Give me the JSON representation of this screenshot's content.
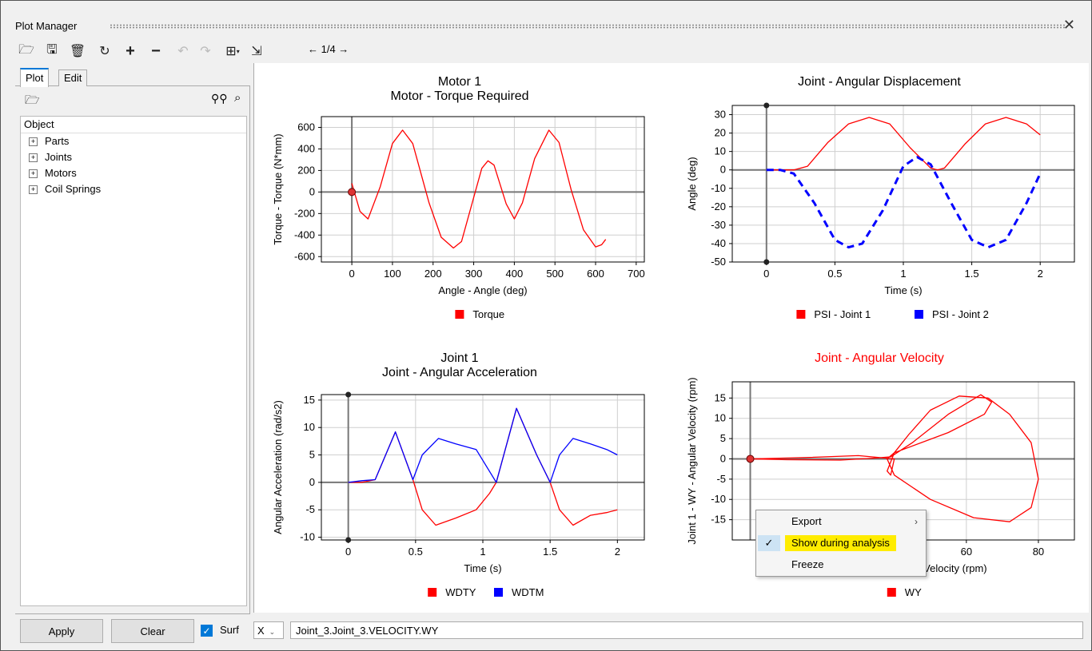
{
  "window": {
    "title": "Plot Manager",
    "close_icon": "close-icon"
  },
  "toolbar": {
    "page_indicator": "← 1/4 →",
    "icons": [
      "open-folder-icon",
      "save-icon",
      "delete-icon",
      "refresh-icon",
      "add-icon",
      "remove-icon",
      "undo-icon",
      "redo-icon",
      "layout-grid-icon",
      "export-chart-icon"
    ]
  },
  "left_panel": {
    "tabs": [
      {
        "label": "Plot",
        "active": true
      },
      {
        "label": "Edit",
        "active": false
      }
    ],
    "tree_header": "Object",
    "tree_items": [
      {
        "label": "Parts"
      },
      {
        "label": "Joints"
      },
      {
        "label": "Motors"
      },
      {
        "label": "Coil Springs"
      }
    ]
  },
  "bottom": {
    "apply_label": "Apply",
    "clear_label": "Clear",
    "surf_label": "Surf",
    "surf_checked": true,
    "axis_select": "X",
    "expression": "Joint_3.Joint_3.VELOCITY.WY"
  },
  "context_menu": {
    "items": [
      {
        "label": "Export",
        "has_submenu": true
      },
      {
        "label": "Show during analysis",
        "checked": true,
        "highlighted": true
      },
      {
        "label": "Freeze"
      }
    ]
  },
  "colors": {
    "red": "#ff0000",
    "blue": "#0000ff",
    "accent": "#0078d7",
    "highlight": "#ffec00"
  },
  "chart_data": [
    {
      "type": "line",
      "title": "Motor 1",
      "subtitle": "Motor - Torque Required",
      "xlabel": "Angle - Angle (deg)",
      "ylabel": "Torque - Torque (N*mm)",
      "xlim": [
        -75,
        720
      ],
      "ylim": [
        -650,
        700
      ],
      "xticks": [
        0,
        100,
        200,
        300,
        400,
        500,
        600,
        700
      ],
      "yticks": [
        -600,
        -400,
        -200,
        0,
        200,
        400,
        600
      ],
      "grid": true,
      "series": [
        {
          "name": "Torque",
          "color": "#ff0000",
          "style": "solid",
          "x": [
            0,
            20,
            40,
            70,
            100,
            125,
            150,
            190,
            220,
            250,
            270,
            300,
            320,
            335,
            350,
            380,
            400,
            420,
            450,
            485,
            510,
            540,
            570,
            600,
            615,
            625
          ],
          "y": [
            80,
            -180,
            -250,
            50,
            450,
            575,
            450,
            -100,
            -420,
            -520,
            -460,
            -50,
            220,
            290,
            250,
            -110,
            -250,
            -100,
            310,
            575,
            460,
            20,
            -350,
            -510,
            -490,
            -440
          ]
        }
      ],
      "legend": "bottom"
    },
    {
      "type": "line",
      "title": "Joint - Angular Displacement",
      "xlabel": "Time (s)",
      "ylabel": "Angle (deg)",
      "xlim": [
        -0.25,
        2.25
      ],
      "ylim": [
        -50,
        35
      ],
      "xticks": [
        0,
        0.5,
        1,
        1.5,
        2
      ],
      "yticks": [
        -50,
        -40,
        -30,
        -20,
        -10,
        0,
        10,
        20,
        30
      ],
      "grid": true,
      "series": [
        {
          "name": "PSI - Joint 1",
          "color": "#ff0000",
          "style": "solid",
          "x": [
            0,
            0.2,
            0.3,
            0.45,
            0.6,
            0.75,
            0.9,
            1.05,
            1.2,
            1.25,
            1.3,
            1.45,
            1.6,
            1.75,
            1.9,
            2.0
          ],
          "y": [
            0,
            0,
            2,
            15,
            25,
            28.5,
            25,
            12,
            1,
            0,
            1,
            14,
            25,
            28.5,
            25,
            19
          ]
        },
        {
          "name": "PSI - Joint 2",
          "color": "#0000ff",
          "style": "dashed",
          "x": [
            0,
            0.1,
            0.2,
            0.35,
            0.5,
            0.6,
            0.7,
            0.85,
            1.0,
            1.1,
            1.2,
            1.35,
            1.5,
            1.62,
            1.75,
            1.9,
            2.0
          ],
          "y": [
            0,
            0,
            -2,
            -18,
            -38,
            -42,
            -40,
            -22,
            2,
            7,
            3,
            -18,
            -38,
            -42,
            -38,
            -18,
            -2
          ]
        }
      ],
      "legend": "bottom"
    },
    {
      "type": "line",
      "title": "Joint 1",
      "subtitle": "Joint - Angular Acceleration",
      "xlabel": "Time (s)",
      "ylabel": "Angular Acceleration (rad/s2)",
      "xlim": [
        -0.2,
        2.2
      ],
      "ylim": [
        -10.5,
        16
      ],
      "xticks": [
        0,
        0.5,
        1,
        1.5,
        2
      ],
      "yticks": [
        -10,
        -5,
        0,
        5,
        10,
        15
      ],
      "grid": true,
      "series": [
        {
          "name": "WDTY",
          "color": "#ff0000",
          "style": "solid",
          "x": [
            0,
            0.1,
            0.2,
            0.35,
            0.48,
            0.55,
            0.65,
            0.8,
            0.95,
            1.05,
            1.1,
            1.25,
            1.4,
            1.5,
            1.57,
            1.67,
            1.8,
            1.92,
            2.0
          ],
          "y": [
            0,
            0,
            0.5,
            9.2,
            0.5,
            -5,
            -7.8,
            -6.5,
            -5,
            -2,
            0,
            13.5,
            5,
            0,
            -5,
            -7.8,
            -6,
            -5.5,
            -5
          ]
        },
        {
          "name": "WDTM",
          "color": "#0000ff",
          "style": "solid",
          "x": [
            0,
            0.1,
            0.2,
            0.35,
            0.48,
            0.55,
            0.67,
            0.8,
            0.95,
            1.05,
            1.1,
            1.25,
            1.4,
            1.5,
            1.57,
            1.67,
            1.8,
            1.92,
            2.0
          ],
          "y": [
            0,
            0.3,
            0.5,
            9.2,
            0.5,
            5,
            8,
            7,
            6,
            2,
            0,
            13.5,
            5,
            0,
            5,
            8,
            7,
            6,
            5
          ]
        }
      ],
      "legend": "bottom"
    },
    {
      "type": "line",
      "title": "Joint - Angular Velocity",
      "title_color": "#ff0000",
      "xlabel": "Joint 3 - WY - Angular Velocity (rpm)",
      "ylabel": "Joint 1 - WY - Angular Velocity (rpm)",
      "xlim": [
        -5,
        90
      ],
      "ylim": [
        -20,
        19
      ],
      "xticks": [
        60,
        80
      ],
      "yticks": [
        -15,
        -10,
        -5,
        0,
        5,
        10,
        15
      ],
      "grid": true,
      "series": [
        {
          "name": "WY",
          "color": "#ff0000",
          "style": "solid",
          "x": [
            0,
            10,
            25,
            35,
            39,
            45,
            55,
            64,
            67,
            65,
            55,
            40,
            38,
            40,
            50,
            62,
            72,
            78,
            80,
            78,
            72,
            66,
            58,
            50,
            44,
            40,
            38,
            39,
            40,
            30,
            15,
            0
          ],
          "y": [
            0,
            -0.2,
            -0.3,
            0.2,
            0.5,
            4,
            11,
            15.8,
            14,
            11,
            6.5,
            1.5,
            0,
            -4,
            -10,
            -14.5,
            -15.5,
            -12,
            -5,
            4,
            11,
            15,
            15.5,
            12,
            6,
            1.5,
            -3,
            -4,
            0,
            0.8,
            0.3,
            0
          ]
        }
      ],
      "legend": "bottom"
    }
  ]
}
